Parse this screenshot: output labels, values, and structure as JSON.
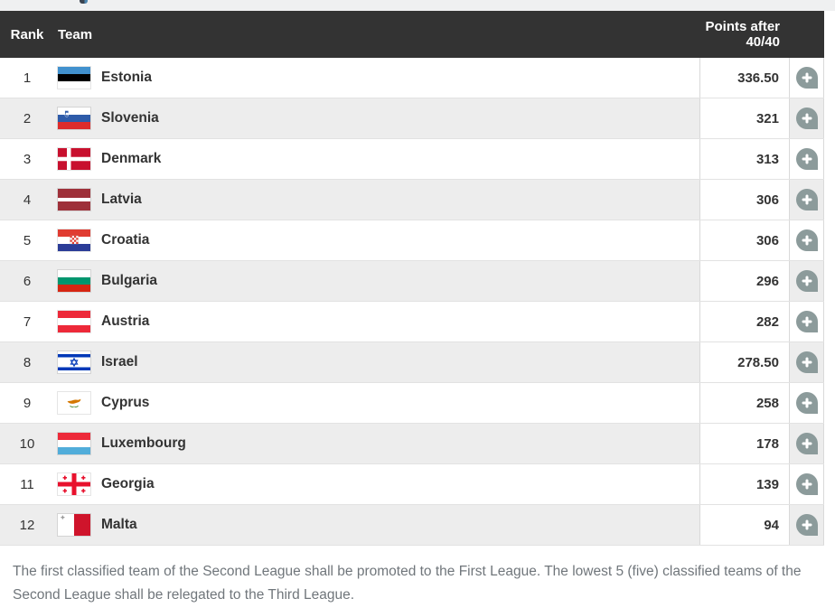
{
  "page": {
    "top_strip_color": "#eff0f1",
    "header_bg": "#333333",
    "row_alt_bg": "#ededed",
    "border_color": "#d9d9d9",
    "expand_button_color": "#8c9b9b"
  },
  "table": {
    "header": {
      "rank": "Rank",
      "team": "Team",
      "points_line1": "Points after",
      "points_line2": "40/40"
    },
    "rows": [
      {
        "rank": "1",
        "team": "Estonia",
        "flag": "estonia",
        "points": "336.50"
      },
      {
        "rank": "2",
        "team": "Slovenia",
        "flag": "slovenia",
        "points": "321"
      },
      {
        "rank": "3",
        "team": "Denmark",
        "flag": "denmark",
        "points": "313"
      },
      {
        "rank": "4",
        "team": "Latvia",
        "flag": "latvia",
        "points": "306"
      },
      {
        "rank": "5",
        "team": "Croatia",
        "flag": "croatia",
        "points": "306"
      },
      {
        "rank": "6",
        "team": "Bulgaria",
        "flag": "bulgaria",
        "points": "296"
      },
      {
        "rank": "7",
        "team": "Austria",
        "flag": "austria",
        "points": "282"
      },
      {
        "rank": "8",
        "team": "Israel",
        "flag": "israel",
        "points": "278.50"
      },
      {
        "rank": "9",
        "team": "Cyprus",
        "flag": "cyprus",
        "points": "258"
      },
      {
        "rank": "10",
        "team": "Luxembourg",
        "flag": "luxembourg",
        "points": "178"
      },
      {
        "rank": "11",
        "team": "Georgia",
        "flag": "georgia",
        "points": "139"
      },
      {
        "rank": "12",
        "team": "Malta",
        "flag": "malta",
        "points": "94"
      }
    ],
    "expand_button": "plus"
  },
  "footer": {
    "note": "The first classified team of the Second League shall be promoted to the First League. The lowest 5 (five) classified teams of the Second League shall be relegated to the Third League."
  }
}
